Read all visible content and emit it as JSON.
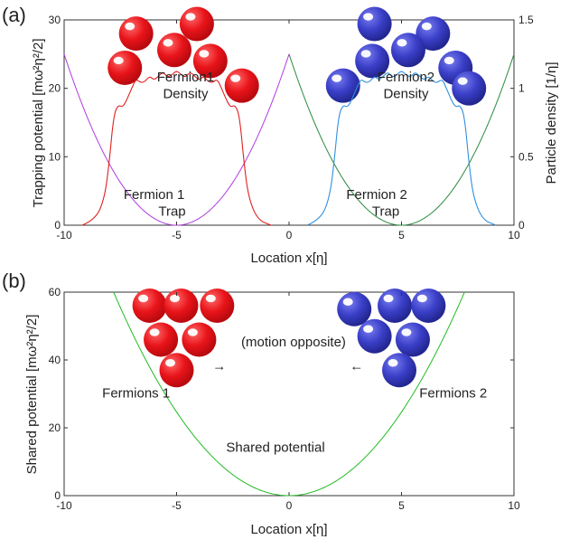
{
  "panels": {
    "a": "(a)",
    "b": "(b)"
  },
  "colors": {
    "fermion1_ball": "#e8141a",
    "fermion2_ball": "#3a3fc8",
    "trap1": "#b03be0",
    "trap2": "#2a8a3e",
    "density1": "#e02020",
    "density2": "#2f8fe0",
    "shared": "#22bb22"
  },
  "chart_data": [
    {
      "type": "line",
      "panel": "(a)",
      "xlabel": "Location x[η]",
      "ylabel": "Trapping potential [mω²η²/2]",
      "y2label": "Particle density [1/η]",
      "xlim": [
        -10,
        10
      ],
      "ylim": [
        0,
        30
      ],
      "y2lim": [
        0,
        1.5
      ],
      "xticks": [
        "-10",
        "-5",
        "0",
        "5",
        "10"
      ],
      "yticks": [
        "0",
        "10",
        "20",
        "30"
      ],
      "y2ticks": [
        "0",
        "0.5",
        "1",
        "1.5"
      ],
      "series": [
        {
          "name": "Fermion 1 Trap",
          "axis": "left",
          "color": "#b03be0",
          "x": [
            -10,
            -9,
            -8,
            -7,
            -6,
            -5,
            -4,
            -3,
            -2,
            -1,
            0
          ],
          "y": [
            25,
            16,
            9,
            4,
            1,
            0,
            1,
            4,
            9,
            16,
            25
          ]
        },
        {
          "name": "Fermion 2 Trap",
          "axis": "left",
          "color": "#2a8a3e",
          "x": [
            0,
            1,
            2,
            3,
            4,
            5,
            6,
            7,
            8,
            9,
            10
          ],
          "y": [
            25,
            16,
            9,
            4,
            1,
            0,
            1,
            4,
            9,
            16,
            25
          ]
        },
        {
          "name": "Fermion1 Density",
          "axis": "right",
          "color": "#e02020",
          "x": [
            -9.2,
            -8.6,
            -8.2,
            -8.0,
            -7.8,
            -7.6,
            -7.4,
            -7.2,
            -7.0,
            -6.8,
            -6.6,
            -6.4,
            -6.2,
            -6.0,
            -5.8,
            -5.6,
            -5.4,
            -5.2,
            -5.0,
            -4.8,
            -4.6,
            -4.4,
            -4.2,
            -4.0,
            -3.8,
            -3.6,
            -3.4,
            -3.2,
            -3.0,
            -2.8,
            -2.6,
            -2.4,
            -2.2,
            -2.0,
            -1.8,
            -1.4,
            -0.8
          ],
          "y": [
            0.0,
            0.04,
            0.2,
            0.45,
            0.8,
            0.88,
            0.86,
            0.92,
            1.0,
            1.07,
            1.04,
            1.05,
            1.09,
            1.06,
            1.09,
            1.12,
            1.08,
            1.1,
            1.13,
            1.1,
            1.08,
            1.12,
            1.09,
            1.06,
            1.09,
            1.05,
            1.04,
            1.07,
            1.0,
            0.92,
            0.86,
            0.88,
            0.8,
            0.45,
            0.2,
            0.04,
            0.0
          ]
        },
        {
          "name": "Fermion2 Density",
          "axis": "right",
          "color": "#2f8fe0",
          "x": [
            0.8,
            1.4,
            1.8,
            2.0,
            2.2,
            2.4,
            2.6,
            2.8,
            3.0,
            3.2,
            3.4,
            3.6,
            3.8,
            4.0,
            4.2,
            4.4,
            4.6,
            4.8,
            5.0,
            5.2,
            5.4,
            5.6,
            5.8,
            6.0,
            6.2,
            6.4,
            6.6,
            6.8,
            7.0,
            7.2,
            7.4,
            7.6,
            7.8,
            8.0,
            8.2,
            8.6,
            9.2
          ],
          "y": [
            0.0,
            0.04,
            0.2,
            0.45,
            0.8,
            0.88,
            0.86,
            0.92,
            1.0,
            1.07,
            1.04,
            1.05,
            1.09,
            1.06,
            1.09,
            1.12,
            1.08,
            1.1,
            1.13,
            1.1,
            1.08,
            1.12,
            1.09,
            1.06,
            1.09,
            1.05,
            1.04,
            1.07,
            1.0,
            0.92,
            0.86,
            0.88,
            0.8,
            0.45,
            0.2,
            0.04,
            0.0
          ]
        }
      ],
      "annotations": [
        {
          "text": "Fermion1",
          "x": -4.6,
          "y": 1.05
        },
        {
          "text": "Density",
          "x": -4.6,
          "y": 0.93
        },
        {
          "text": "Fermion2",
          "x": 5.2,
          "y": 1.05
        },
        {
          "text": "Density",
          "x": 5.2,
          "y": 0.93
        },
        {
          "text": "Fermion 1",
          "x": -6.0,
          "y": 0.19
        },
        {
          "text": "Trap",
          "x": -5.2,
          "y": 0.07
        },
        {
          "text": "Fermion 2",
          "x": 3.9,
          "y": 0.19
        },
        {
          "text": "Trap",
          "x": 4.3,
          "y": 0.07
        }
      ],
      "grid": false
    },
    {
      "type": "line",
      "panel": "(b)",
      "xlabel": "Location x[η]",
      "ylabel": "Shared potential [mω²η²/2]",
      "xlim": [
        -10,
        10
      ],
      "ylim": [
        0,
        60
      ],
      "xticks": [
        "-10",
        "-5",
        "0",
        "5",
        "10"
      ],
      "yticks": [
        "0",
        "20",
        "40",
        "60"
      ],
      "series": [
        {
          "name": "Shared potential",
          "color": "#22bb22",
          "x": [
            -7.8,
            -7,
            -6,
            -5,
            -4,
            -3,
            -2,
            -1,
            0,
            1,
            2,
            3,
            4,
            5,
            6,
            7,
            7.8
          ],
          "y": [
            60,
            49,
            36,
            25,
            16,
            9,
            4,
            1,
            0,
            1,
            4,
            9,
            16,
            25,
            36,
            49,
            60
          ]
        }
      ],
      "annotations": [
        {
          "text": "(motion opposite)",
          "x": 0.2,
          "y": 44
        },
        {
          "text": "→",
          "x": -3.1,
          "y": 37
        },
        {
          "text": "←",
          "x": 3.0,
          "y": 37
        },
        {
          "text": "Fermions 1",
          "x": -6.8,
          "y": 29
        },
        {
          "text": "Fermions 2",
          "x": 7.3,
          "y": 29
        },
        {
          "text": "Shared potential",
          "x": -0.6,
          "y": 13
        }
      ],
      "grid": false
    }
  ],
  "balls": {
    "panel_a_fermion1": [
      [
        -4.1,
        1.47
      ],
      [
        -6.8,
        1.4
      ],
      [
        -5.1,
        1.28
      ],
      [
        -3.5,
        1.2
      ],
      [
        -7.3,
        1.15
      ],
      [
        -2.1,
        1.02
      ]
    ],
    "panel_a_fermion2": [
      [
        3.8,
        1.47
      ],
      [
        6.4,
        1.4
      ],
      [
        5.3,
        1.28
      ],
      [
        3.7,
        1.2
      ],
      [
        7.4,
        1.15
      ],
      [
        2.4,
        1.02
      ],
      [
        8.0,
        1.0
      ]
    ],
    "panel_b_fermion1": [
      [
        -6.2,
        56
      ],
      [
        -4.8,
        56
      ],
      [
        -3.2,
        56
      ],
      [
        -5.7,
        46
      ],
      [
        -4.0,
        46
      ],
      [
        -5.0,
        37
      ]
    ],
    "panel_b_fermion2": [
      [
        2.9,
        55
      ],
      [
        4.7,
        56
      ],
      [
        6.2,
        56
      ],
      [
        3.8,
        47
      ],
      [
        5.5,
        46
      ],
      [
        4.9,
        37
      ]
    ]
  }
}
